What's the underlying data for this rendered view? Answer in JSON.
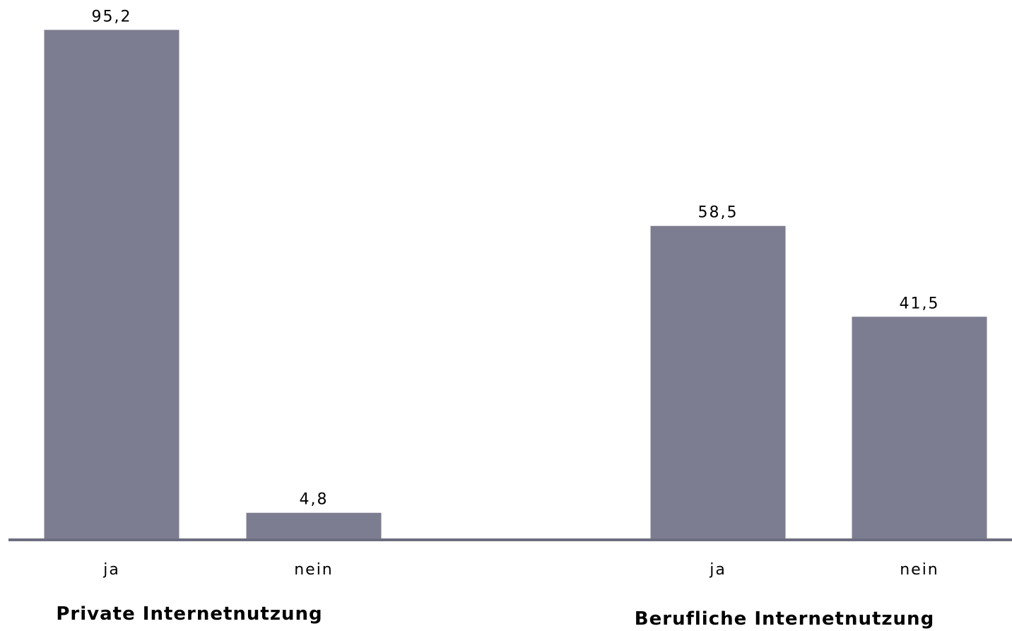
{
  "chart_data": {
    "type": "bar",
    "groups": [
      {
        "name": "Private Internetnutzung",
        "categories": [
          "ja",
          "nein"
        ],
        "values": [
          95.2,
          4.8
        ],
        "value_labels": [
          "95,2",
          "4,8"
        ]
      },
      {
        "name": "Berufliche Internetnutzung",
        "categories": [
          "ja",
          "nein"
        ],
        "values": [
          58.5,
          41.5
        ],
        "value_labels": [
          "58,5",
          "41,5"
        ]
      }
    ],
    "ylim": [
      0,
      100
    ],
    "grid": false,
    "legend": "none",
    "colors": {
      "bar": "#7d7d91",
      "axis": "#6e6e82"
    }
  }
}
